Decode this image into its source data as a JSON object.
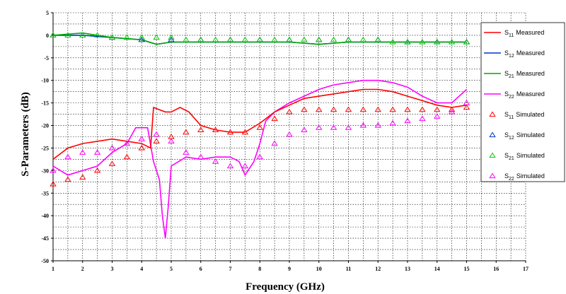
{
  "chart_data": {
    "type": "line",
    "xlabel": "Frequency (GHz)",
    "ylabel": "S-Parameters (dB)",
    "xlim": [
      1,
      17
    ],
    "ylim": [
      -50,
      5
    ],
    "xticks": [
      1,
      2,
      3,
      4,
      5,
      6,
      7,
      8,
      9,
      10,
      11,
      12,
      13,
      14,
      15,
      16,
      17
    ],
    "yticks": [
      5,
      0,
      -5,
      -10,
      -15,
      -20,
      -25,
      -30,
      -35,
      -40,
      -45,
      -50
    ],
    "grid": true,
    "legend_placement": "right",
    "series": [
      {
        "name": "S11 Measured",
        "param": "S",
        "sub": "11",
        "kind": "Measured",
        "color": "#ff0000",
        "marker": "line",
        "x": [
          1,
          1.5,
          2,
          2.5,
          3,
          3.5,
          4,
          4.3,
          4.4,
          4.6,
          4.8,
          5,
          5.3,
          5.6,
          6,
          6.5,
          7,
          7.5,
          8,
          8.5,
          9,
          9.5,
          10,
          10.5,
          11,
          11.5,
          12,
          12.5,
          13,
          13.5,
          14,
          14.5,
          15
        ],
        "y": [
          -27.5,
          -25,
          -24,
          -23.5,
          -23,
          -23.5,
          -24,
          -25,
          -16,
          -16.5,
          -17,
          -17,
          -16,
          -17,
          -20,
          -21,
          -21.5,
          -21.5,
          -19.5,
          -17,
          -15.5,
          -14,
          -13.5,
          -13,
          -12.5,
          -12,
          -12,
          -12.5,
          -13.5,
          -14.5,
          -15.5,
          -16,
          -15.5
        ]
      },
      {
        "name": "S12 Measured",
        "param": "S",
        "sub": "12",
        "kind": "Measured",
        "color": "#0033cc",
        "marker": "line",
        "x": [
          1,
          2,
          3,
          4,
          4.5,
          5,
          6,
          7,
          8,
          9,
          10,
          11,
          12,
          13,
          14,
          15
        ],
        "y": [
          0,
          0,
          -0.5,
          -1,
          -2,
          -1.5,
          -1.5,
          -1.5,
          -1.5,
          -1.5,
          -2,
          -1.5,
          -1.5,
          -1.5,
          -1.5,
          -1.5
        ]
      },
      {
        "name": "S21 Measured",
        "param": "S",
        "sub": "21",
        "kind": "Measured",
        "color": "#00aa00",
        "marker": "line",
        "x": [
          1,
          2,
          3,
          4,
          4.5,
          5,
          6,
          7,
          8,
          9,
          10,
          11,
          12,
          13,
          14,
          15
        ],
        "y": [
          0,
          0.5,
          -0.5,
          -1,
          -2,
          -1.5,
          -1.5,
          -1.5,
          -1.5,
          -1.5,
          -2,
          -1.5,
          -1.5,
          -1.5,
          -1.5,
          -1.5
        ]
      },
      {
        "name": "S22 Measured",
        "param": "S",
        "sub": "22",
        "kind": "Measured",
        "color": "#ff00ff",
        "marker": "line",
        "x": [
          1,
          1.5,
          2,
          2.5,
          3,
          3.5,
          3.8,
          4.2,
          4.4,
          4.6,
          4.7,
          4.8,
          4.9,
          5,
          5.5,
          6,
          6.5,
          7,
          7.3,
          7.5,
          7.8,
          8,
          8.2,
          8.5,
          9,
          9.5,
          10,
          10.5,
          11,
          11.5,
          12,
          12.5,
          13,
          13.5,
          14,
          14.5,
          15
        ],
        "y": [
          -29,
          -31,
          -30,
          -29,
          -26,
          -24,
          -20.5,
          -20.5,
          -28,
          -32,
          -40,
          -45,
          -38,
          -29,
          -27,
          -27.5,
          -27,
          -27,
          -28,
          -31,
          -28,
          -24,
          -19,
          -17,
          -15,
          -13.5,
          -12,
          -11,
          -10.5,
          -10,
          -10,
          -10.5,
          -11.5,
          -13.5,
          -15,
          -15,
          -12
        ]
      },
      {
        "name": "S11 Simulated",
        "param": "S",
        "sub": "11",
        "kind": "Simulated",
        "color": "#ff0000",
        "marker": "triangle",
        "x": [
          1,
          1.5,
          2,
          2.5,
          3,
          3.5,
          4,
          4.5,
          5,
          5.5,
          6,
          6.5,
          7,
          7.5,
          8,
          8.5,
          9,
          9.5,
          10,
          10.5,
          11,
          11.5,
          12,
          12.5,
          13,
          13.5,
          14,
          14.5,
          15
        ],
        "y": [
          -33,
          -32,
          -31.5,
          -30,
          -28.5,
          -27,
          -25,
          -23.5,
          -22.5,
          -21.5,
          -21,
          -21,
          -21.5,
          -21.5,
          -20.5,
          -18.5,
          -17,
          -16.5,
          -16.5,
          -16.5,
          -16.5,
          -16.5,
          -16.5,
          -16.5,
          -16.5,
          -16.5,
          -16.5,
          -16.5,
          -16
        ]
      },
      {
        "name": "S12 Simulated",
        "param": "S",
        "sub": "12",
        "kind": "Simulated",
        "color": "#0033cc",
        "marker": "triangle",
        "x": [
          1,
          2,
          3,
          4,
          5,
          6,
          7,
          8,
          9,
          10,
          11,
          12,
          13,
          14,
          15
        ],
        "y": [
          0,
          0,
          -0.5,
          -1,
          -1,
          -1,
          -1,
          -1,
          -1,
          -1,
          -1,
          -1,
          -1.5,
          -1.5,
          -1.5
        ]
      },
      {
        "name": "S21 Simulated",
        "param": "S",
        "sub": "21",
        "kind": "Simulated",
        "color": "#00cc00",
        "marker": "triangle",
        "x": [
          1,
          1.5,
          2,
          2.5,
          3,
          3.5,
          4,
          4.5,
          5,
          5.5,
          6,
          6.5,
          7,
          7.5,
          8,
          8.5,
          9,
          9.5,
          10,
          10.5,
          11,
          11.5,
          12,
          12.5,
          13,
          13.5,
          14,
          14.5,
          15
        ],
        "y": [
          0,
          0,
          0,
          0,
          -0.5,
          -0.5,
          -0.5,
          -0.5,
          -0.5,
          -1,
          -1,
          -1,
          -1,
          -1,
          -1,
          -1,
          -1,
          -1,
          -1,
          -1,
          -1,
          -1,
          -1,
          -1.5,
          -1.5,
          -1.5,
          -1.5,
          -1.5,
          -1.5
        ]
      },
      {
        "name": "S22 Simulated",
        "param": "S",
        "sub": "22",
        "kind": "Simulated",
        "color": "#ff00ff",
        "marker": "triangle",
        "x": [
          1,
          1.5,
          2,
          2.5,
          3,
          3.5,
          4,
          4.5,
          5,
          5.5,
          6,
          6.5,
          7,
          7.5,
          8,
          8.5,
          9,
          9.5,
          10,
          10.5,
          11,
          11.5,
          12,
          12.5,
          13,
          13.5,
          14,
          14.5,
          15
        ],
        "y": [
          -30,
          -27,
          -26,
          -26,
          -25,
          -24,
          -23,
          -22,
          -23.5,
          -26,
          -27,
          -28,
          -29,
          -29,
          -27,
          -24,
          -22,
          -21,
          -20.5,
          -20.5,
          -20.5,
          -20,
          -20,
          -19.5,
          -19,
          -18.5,
          -18,
          -17,
          -15
        ]
      }
    ]
  }
}
